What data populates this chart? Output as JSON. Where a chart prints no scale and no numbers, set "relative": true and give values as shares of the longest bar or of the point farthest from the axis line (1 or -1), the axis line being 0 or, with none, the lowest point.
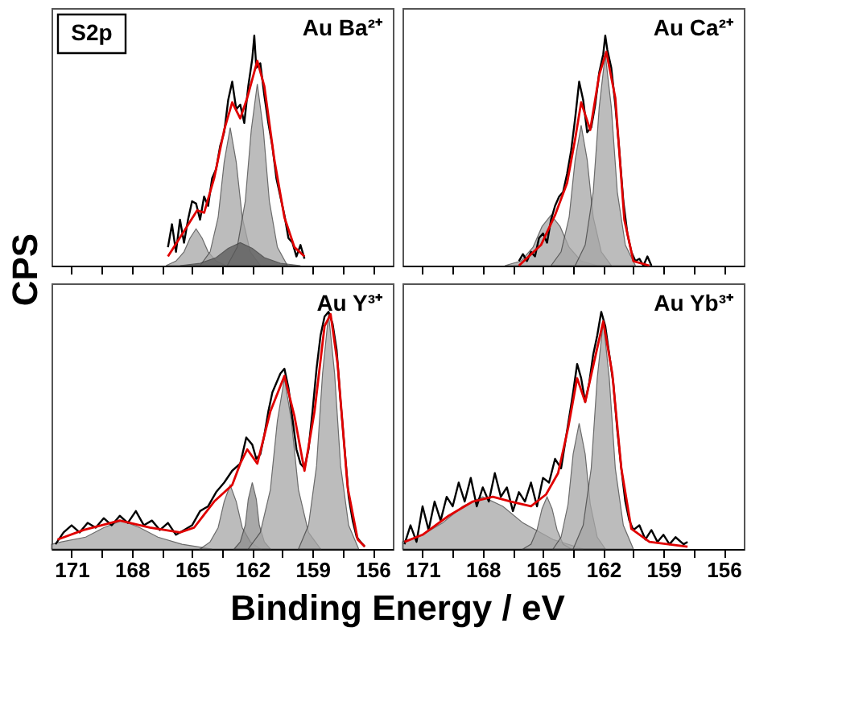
{
  "chart_data": [
    {
      "type": "line",
      "title": "Au Ba²⁺",
      "annotations": [
        "S2p"
      ],
      "ylabel": "CPS",
      "relative": true,
      "tick_labels": false,
      "grid": false,
      "marker": "none",
      "xlim": [
        172,
        155
      ],
      "xticks": [
        171,
        {
          "value": 169.5,
          "label": null
        },
        168,
        {
          "value": 166.5,
          "label": null
        },
        165,
        {
          "value": 163.5,
          "label": null
        },
        162,
        {
          "value": 160.5,
          "label": null
        },
        159,
        {
          "value": 157.5,
          "label": null
        },
        156
      ],
      "series": [
        {
          "type": "area",
          "color": "#a6a6a6",
          "x": [
            166.3,
            165.8,
            165.4,
            165.1,
            164.8,
            164.5,
            164.2,
            163.8,
            163.3
          ],
          "values": [
            0,
            0.02,
            0.06,
            0.12,
            0.16,
            0.12,
            0.06,
            0.02,
            0
          ]
        },
        {
          "type": "area",
          "color": "#a6a6a6",
          "x": [
            164.6,
            164.1,
            163.7,
            163.4,
            163.1,
            162.8,
            162.5,
            162.1,
            161.6
          ],
          "values": [
            0,
            0.06,
            0.21,
            0.45,
            0.6,
            0.45,
            0.21,
            0.06,
            0
          ]
        },
        {
          "type": "area",
          "color": "#a6a6a6",
          "x": [
            163.25,
            162.75,
            162.35,
            162.05,
            161.75,
            161.45,
            161.15,
            160.75,
            160.25
          ],
          "values": [
            0,
            0.08,
            0.28,
            0.59,
            0.79,
            0.59,
            0.28,
            0.08,
            0
          ]
        },
        {
          "type": "area",
          "color": "#595959",
          "x": [
            165.6,
            164.6,
            163.8,
            163.2,
            162.6,
            162.0,
            161.4,
            160.6,
            159.6
          ],
          "values": [
            0,
            0.01,
            0.035,
            0.075,
            0.1,
            0.075,
            0.035,
            0.01,
            0
          ]
        },
        {
          "type": "line",
          "color": "#000000",
          "x": [
            166.2,
            166.0,
            165.8,
            165.6,
            165.4,
            165.2,
            165.0,
            164.8,
            164.6,
            164.4,
            164.2,
            164.0,
            163.8,
            163.6,
            163.4,
            163.2,
            163.0,
            162.8,
            162.6,
            162.4,
            162.2,
            162.0,
            161.9,
            161.8,
            161.6,
            161.4,
            161.2,
            161.0,
            160.8,
            160.6,
            160.4,
            160.2,
            160.0,
            159.8,
            159.6,
            159.4
          ],
          "values": [
            0.08,
            0.18,
            0.06,
            0.2,
            0.1,
            0.2,
            0.28,
            0.27,
            0.2,
            0.3,
            0.26,
            0.38,
            0.42,
            0.52,
            0.58,
            0.72,
            0.8,
            0.68,
            0.7,
            0.62,
            0.78,
            0.9,
            1.0,
            0.86,
            0.88,
            0.74,
            0.62,
            0.52,
            0.38,
            0.3,
            0.22,
            0.12,
            0.1,
            0.04,
            0.09,
            0.03
          ]
        },
        {
          "type": "line",
          "color": "#e00000",
          "x": [
            166.2,
            165.4,
            164.75,
            164.4,
            163.9,
            163.4,
            163.0,
            162.6,
            162.25,
            161.75,
            161.4,
            160.9,
            160.4,
            159.9,
            159.4
          ],
          "values": [
            0.04,
            0.15,
            0.24,
            0.23,
            0.38,
            0.59,
            0.71,
            0.64,
            0.73,
            0.89,
            0.78,
            0.46,
            0.21,
            0.08,
            0.04
          ]
        }
      ]
    },
    {
      "type": "line",
      "title": "Au Ca²⁺",
      "relative": true,
      "tick_labels": false,
      "grid": false,
      "marker": "none",
      "xlim": [
        172,
        155
      ],
      "xticks": [
        171,
        {
          "value": 169.5,
          "label": null
        },
        168,
        {
          "value": 166.5,
          "label": null
        },
        165,
        {
          "value": 163.5,
          "label": null
        },
        162,
        {
          "value": 160.5,
          "label": null
        },
        159,
        {
          "value": 157.5,
          "label": null
        },
        156
      ],
      "series": [
        {
          "type": "area",
          "color": "#a6a6a6",
          "x": [
            166.9,
            166.1,
            165.5,
            165.05,
            164.6,
            164.15,
            163.7,
            163.1,
            162.3
          ],
          "values": [
            0,
            0.02,
            0.08,
            0.17,
            0.22,
            0.17,
            0.08,
            0.02,
            0
          ]
        },
        {
          "type": "area",
          "color": "#a6a6a6",
          "x": [
            164.6,
            164.1,
            163.7,
            163.4,
            163.1,
            162.8,
            162.5,
            162.1,
            161.6
          ],
          "values": [
            0,
            0.06,
            0.21,
            0.46,
            0.61,
            0.46,
            0.21,
            0.06,
            0
          ]
        },
        {
          "type": "area",
          "color": "#a6a6a6",
          "x": [
            163.4,
            162.9,
            162.5,
            162.2,
            161.9,
            161.6,
            161.3,
            160.9,
            160.4
          ],
          "values": [
            0,
            0.09,
            0.32,
            0.69,
            0.92,
            0.69,
            0.32,
            0.09,
            0
          ]
        },
        {
          "type": "line",
          "color": "#000000",
          "x": [
            166.2,
            166.0,
            165.8,
            165.6,
            165.4,
            165.2,
            165.0,
            164.8,
            164.6,
            164.4,
            164.2,
            164.0,
            163.8,
            163.6,
            163.4,
            163.2,
            163.0,
            162.8,
            162.6,
            162.4,
            162.2,
            162.0,
            161.9,
            161.8,
            161.6,
            161.4,
            161.2,
            161.0,
            160.8,
            160.6,
            160.4,
            160.2,
            160.0,
            159.8,
            159.6
          ],
          "values": [
            0.02,
            0.05,
            0.02,
            0.06,
            0.04,
            0.12,
            0.14,
            0.1,
            0.2,
            0.26,
            0.3,
            0.32,
            0.4,
            0.5,
            0.64,
            0.8,
            0.72,
            0.58,
            0.6,
            0.7,
            0.84,
            0.92,
            1.0,
            0.94,
            0.86,
            0.7,
            0.5,
            0.28,
            0.14,
            0.06,
            0.02,
            0.03,
            0.0,
            0.04,
            0.0
          ]
        },
        {
          "type": "line",
          "color": "#e00000",
          "x": [
            166.2,
            165.1,
            164.4,
            163.8,
            163.4,
            163.1,
            162.65,
            162.2,
            161.85,
            161.4,
            160.95,
            160.5,
            159.7
          ],
          "values": [
            0.0,
            0.09,
            0.22,
            0.36,
            0.55,
            0.71,
            0.59,
            0.83,
            0.93,
            0.73,
            0.2,
            0.02,
            0.0
          ]
        }
      ]
    },
    {
      "type": "line",
      "title": "Au Y³⁺",
      "xlabel": "Binding Energy / eV",
      "relative": true,
      "tick_labels": "x",
      "grid": false,
      "marker": "none",
      "xlim": [
        172,
        155
      ],
      "xticks": [
        171,
        {
          "value": 169.5,
          "label": null
        },
        168,
        {
          "value": 166.5,
          "label": null
        },
        165,
        {
          "value": 163.5,
          "label": null
        },
        162,
        {
          "value": 160.5,
          "label": null
        },
        159,
        {
          "value": 157.5,
          "label": null
        },
        156
      ],
      "series": [
        {
          "type": "area",
          "color": "#a6a6a6",
          "x": [
            172.0,
            171.5,
            170.3,
            169.4,
            168.5,
            167.6,
            166.7,
            165.5,
            164.0
          ],
          "values": [
            0.02,
            0.03,
            0.05,
            0.09,
            0.12,
            0.09,
            0.05,
            0.02,
            0
          ]
        },
        {
          "type": "area",
          "color": "#a6a6a6",
          "x": [
            164.6,
            164.1,
            163.7,
            163.4,
            163.1,
            162.8,
            162.5,
            162.1,
            161.6
          ],
          "values": [
            0,
            0.03,
            0.09,
            0.2,
            0.27,
            0.2,
            0.09,
            0.03,
            0
          ]
        },
        {
          "type": "area",
          "color": "#8c8c8c",
          "x": [
            162.9,
            162.6,
            162.35,
            162.2,
            162.0,
            161.8,
            161.65,
            161.4,
            161.1
          ],
          "values": [
            0,
            0.03,
            0.1,
            0.21,
            0.28,
            0.21,
            0.1,
            0.03,
            0
          ]
        },
        {
          "type": "area",
          "color": "#a6a6a6",
          "x": [
            162.2,
            161.6,
            161.1,
            160.75,
            160.4,
            160.05,
            159.7,
            159.2,
            158.6
          ],
          "values": [
            0,
            0.07,
            0.25,
            0.54,
            0.72,
            0.54,
            0.25,
            0.07,
            0
          ]
        },
        {
          "type": "area",
          "color": "#a6a6a6",
          "x": [
            159.7,
            159.2,
            158.8,
            158.5,
            158.2,
            157.9,
            157.6,
            157.2,
            156.7
          ],
          "values": [
            0,
            0.1,
            0.35,
            0.74,
            0.99,
            0.74,
            0.35,
            0.1,
            0
          ]
        },
        {
          "type": "line",
          "color": "#000000",
          "x": [
            171.8,
            171.4,
            171.0,
            170.6,
            170.2,
            169.8,
            169.4,
            169.0,
            168.6,
            168.2,
            167.8,
            167.4,
            167.0,
            166.6,
            166.2,
            165.8,
            165.4,
            165.0,
            164.6,
            164.2,
            163.8,
            163.4,
            163.0,
            162.6,
            162.3,
            162.0,
            161.8,
            161.6,
            161.4,
            161.2,
            161.0,
            160.8,
            160.6,
            160.4,
            160.2,
            160.0,
            159.8,
            159.6,
            159.4,
            159.2,
            159.0,
            158.8,
            158.6,
            158.4,
            158.2,
            158.0,
            157.8,
            157.6,
            157.4,
            157.2,
            157.0,
            156.8,
            156.6,
            156.4
          ],
          "values": [
            0.02,
            0.07,
            0.1,
            0.07,
            0.11,
            0.09,
            0.13,
            0.1,
            0.14,
            0.11,
            0.16,
            0.1,
            0.12,
            0.08,
            0.11,
            0.06,
            0.08,
            0.1,
            0.16,
            0.18,
            0.24,
            0.28,
            0.33,
            0.36,
            0.47,
            0.44,
            0.38,
            0.4,
            0.48,
            0.58,
            0.66,
            0.7,
            0.74,
            0.76,
            0.68,
            0.55,
            0.42,
            0.36,
            0.34,
            0.42,
            0.58,
            0.76,
            0.9,
            0.98,
            1.0,
            0.95,
            0.84,
            0.62,
            0.42,
            0.22,
            0.12,
            0.05,
            0.03,
            0.01
          ]
        },
        {
          "type": "line",
          "color": "#e00000",
          "x": [
            171.7,
            170.4,
            168.6,
            167.1,
            165.6,
            164.9,
            163.9,
            163.0,
            162.6,
            162.25,
            161.75,
            161.1,
            160.4,
            159.9,
            159.4,
            158.9,
            158.4,
            158.1,
            157.75,
            157.25,
            156.75,
            156.4
          ],
          "values": [
            0.04,
            0.08,
            0.12,
            0.09,
            0.07,
            0.09,
            0.2,
            0.27,
            0.36,
            0.42,
            0.36,
            0.58,
            0.73,
            0.56,
            0.33,
            0.58,
            0.94,
            0.99,
            0.78,
            0.26,
            0.04,
            0.01
          ]
        }
      ]
    },
    {
      "type": "line",
      "title": "Au Yb³⁺",
      "relative": true,
      "tick_labels": "x",
      "grid": false,
      "marker": "none",
      "xlim": [
        172,
        155
      ],
      "xticks": [
        171,
        {
          "value": 169.5,
          "label": null
        },
        168,
        {
          "value": 166.5,
          "label": null
        },
        165,
        {
          "value": 163.5,
          "label": null
        },
        162,
        {
          "value": 160.5,
          "label": null
        },
        159,
        {
          "value": 157.5,
          "label": null
        },
        156
      ],
      "series": [
        {
          "type": "area",
          "color": "#a6a6a6",
          "x": [
            172.0,
            171.0,
            170.0,
            169.0,
            168.0,
            167.0,
            166.0,
            164.5,
            163.0
          ],
          "values": [
            0.03,
            0.06,
            0.11,
            0.18,
            0.22,
            0.18,
            0.11,
            0.04,
            0
          ]
        },
        {
          "type": "area",
          "color": "#a6a6a6",
          "x": [
            166.0,
            165.6,
            165.3,
            165.05,
            164.8,
            164.55,
            164.3,
            164.0,
            163.6
          ],
          "values": [
            0,
            0.02,
            0.08,
            0.17,
            0.22,
            0.17,
            0.08,
            0.02,
            0
          ]
        },
        {
          "type": "area",
          "color": "#a6a6a6",
          "x": [
            164.5,
            164.1,
            163.75,
            163.5,
            163.2,
            162.9,
            162.65,
            162.3,
            161.9
          ],
          "values": [
            0,
            0.05,
            0.19,
            0.4,
            0.53,
            0.4,
            0.19,
            0.05,
            0
          ]
        },
        {
          "type": "area",
          "color": "#a6a6a6",
          "x": [
            163.5,
            163.0,
            162.6,
            162.3,
            162.0,
            161.7,
            161.4,
            161.0,
            160.5
          ],
          "values": [
            0,
            0.1,
            0.34,
            0.72,
            0.96,
            0.72,
            0.34,
            0.1,
            0
          ]
        },
        {
          "type": "line",
          "color": "#000000",
          "x": [
            171.9,
            171.6,
            171.3,
            171.0,
            170.7,
            170.4,
            170.1,
            169.8,
            169.5,
            169.2,
            168.9,
            168.6,
            168.3,
            168.0,
            167.7,
            167.4,
            167.1,
            166.8,
            166.5,
            166.2,
            165.9,
            165.6,
            165.3,
            165.0,
            164.7,
            164.4,
            164.1,
            163.8,
            163.5,
            163.3,
            163.1,
            162.9,
            162.7,
            162.5,
            162.3,
            162.1,
            161.9,
            161.7,
            161.5,
            161.3,
            161.1,
            160.9,
            160.7,
            160.5,
            160.2,
            159.9,
            159.6,
            159.3,
            159.0,
            158.7,
            158.4,
            158.0,
            157.8
          ],
          "values": [
            0.02,
            0.1,
            0.03,
            0.18,
            0.08,
            0.2,
            0.12,
            0.22,
            0.18,
            0.28,
            0.2,
            0.3,
            0.18,
            0.26,
            0.2,
            0.32,
            0.22,
            0.26,
            0.16,
            0.24,
            0.2,
            0.28,
            0.18,
            0.3,
            0.28,
            0.38,
            0.34,
            0.5,
            0.66,
            0.78,
            0.72,
            0.62,
            0.7,
            0.82,
            0.9,
            1.0,
            0.94,
            0.82,
            0.7,
            0.5,
            0.34,
            0.2,
            0.12,
            0.08,
            0.1,
            0.04,
            0.08,
            0.03,
            0.06,
            0.02,
            0.05,
            0.02,
            0.03
          ]
        },
        {
          "type": "line",
          "color": "#e00000",
          "x": [
            171.9,
            171.0,
            169.7,
            168.5,
            167.5,
            166.6,
            165.6,
            164.85,
            164.25,
            163.75,
            163.3,
            162.9,
            162.4,
            162.0,
            161.55,
            161.1,
            160.6,
            159.7,
            157.8
          ],
          "values": [
            0.03,
            0.06,
            0.14,
            0.2,
            0.22,
            0.2,
            0.18,
            0.23,
            0.32,
            0.51,
            0.72,
            0.62,
            0.81,
            0.96,
            0.74,
            0.34,
            0.085,
            0.03,
            0.01
          ]
        }
      ]
    }
  ]
}
